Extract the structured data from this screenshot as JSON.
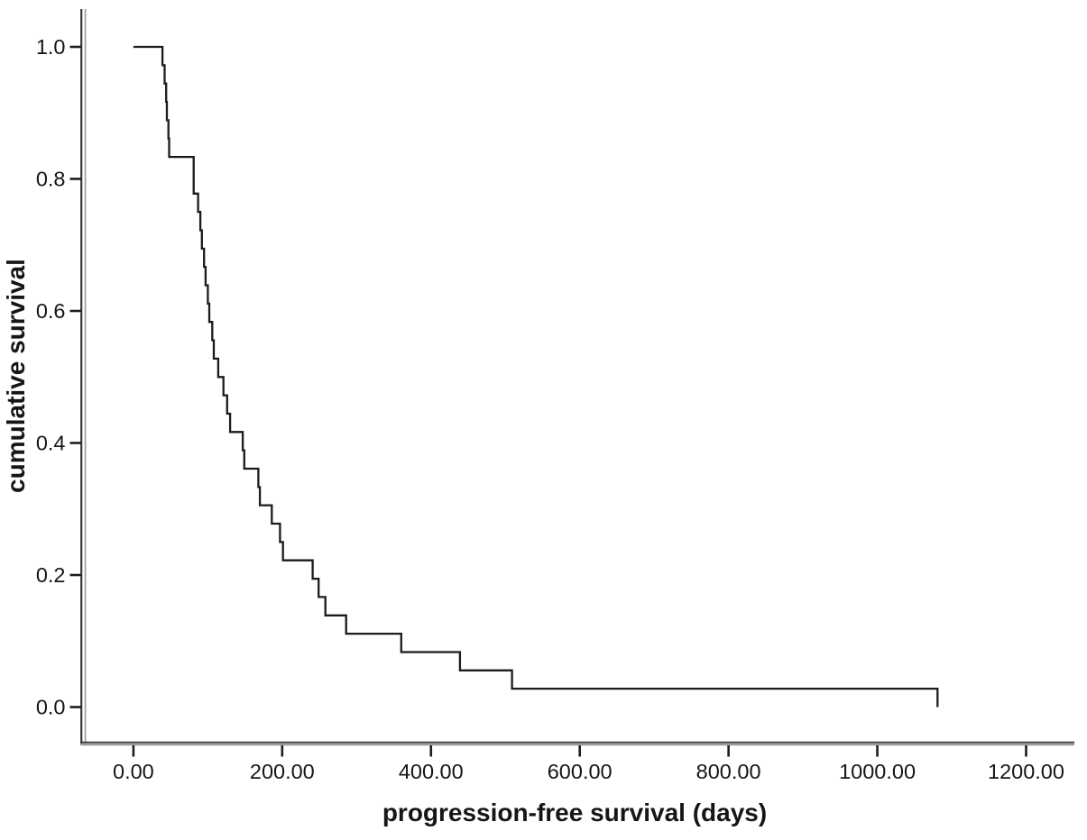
{
  "chart_data": {
    "type": "line",
    "subtype": "kaplan-meier-step",
    "title": "",
    "xlabel": "progression-free survival (days)",
    "ylabel": "cumulative survival",
    "x_ticks": [
      0,
      200,
      400,
      600,
      800,
      1000,
      1200
    ],
    "x_tick_labels": [
      "0.00",
      "200.00",
      "400.00",
      "600.00",
      "800.00",
      "1000.00",
      "1200.00"
    ],
    "y_ticks": [
      0.0,
      0.2,
      0.4,
      0.6,
      0.8,
      1.0
    ],
    "y_tick_labels": [
      "0.0",
      "0.2",
      "0.4",
      "0.6",
      "0.8",
      "1.0"
    ],
    "xlim": [
      -70,
      1265
    ],
    "ylim": [
      -0.055,
      1.05
    ],
    "grid": false,
    "legend": null,
    "series": [
      {
        "name": "cumulative survival",
        "step": "post",
        "points": [
          [
            0,
            1.0
          ],
          [
            39,
            0.9722
          ],
          [
            42,
            0.9444
          ],
          [
            44,
            0.9167
          ],
          [
            45,
            0.8889
          ],
          [
            47,
            0.8611
          ],
          [
            48,
            0.8333
          ],
          [
            81,
            0.7778
          ],
          [
            87,
            0.75
          ],
          [
            90,
            0.7222
          ],
          [
            92,
            0.6944
          ],
          [
            95,
            0.6667
          ],
          [
            97,
            0.6389
          ],
          [
            100,
            0.6111
          ],
          [
            102,
            0.5833
          ],
          [
            106,
            0.5556
          ],
          [
            108,
            0.5278
          ],
          [
            114,
            0.5
          ],
          [
            121,
            0.4722
          ],
          [
            126,
            0.4444
          ],
          [
            130,
            0.4167
          ],
          [
            147,
            0.3889
          ],
          [
            149,
            0.3611
          ],
          [
            168,
            0.3333
          ],
          [
            170,
            0.3056
          ],
          [
            186,
            0.2778
          ],
          [
            197,
            0.25
          ],
          [
            201,
            0.2222
          ],
          [
            241,
            0.1944
          ],
          [
            249,
            0.1667
          ],
          [
            258,
            0.1389
          ],
          [
            286,
            0.1111
          ],
          [
            360,
            0.0833
          ],
          [
            439,
            0.0556
          ],
          [
            509,
            0.0278
          ],
          [
            1081,
            0.0
          ]
        ]
      }
    ]
  },
  "styles": {
    "background": "#ffffff",
    "curve_color": "#1b1b1b",
    "axis_dark": "#3a3a3a",
    "axis_light": "#9b9b9b",
    "tick_color": "#1d1d1d",
    "text_color": "#161616"
  }
}
